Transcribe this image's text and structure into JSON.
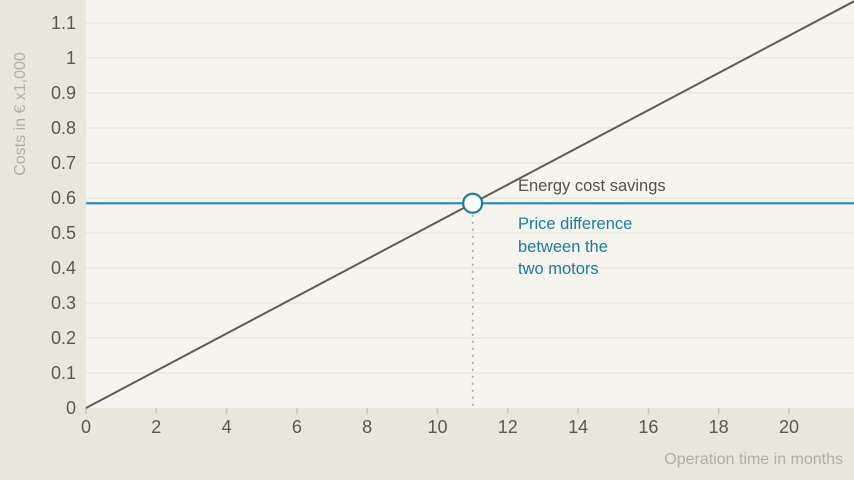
{
  "chart_data": {
    "type": "line",
    "title": "",
    "xlabel": "Operation time in months",
    "ylabel": "Costs in € x1,000",
    "xlim": [
      0,
      21.85
    ],
    "ylim": [
      0,
      1.17
    ],
    "grid": "horizontal",
    "legend_position": "inline-annotations",
    "x_ticks": [
      0,
      2,
      4,
      6,
      8,
      10,
      12,
      14,
      16,
      18,
      20
    ],
    "y_tick_step": 0.1,
    "y_tick_labels": [
      "0",
      "0.1",
      "0.2",
      "0.3",
      "0.4",
      "0.5",
      "0.6",
      "0.7",
      "0.8",
      "0.9",
      "1",
      "1.1"
    ],
    "series": [
      {
        "name": "Energy cost savings",
        "points": [
          [
            0,
            0
          ],
          [
            11,
            0.585
          ],
          [
            21.85,
            1.162
          ]
        ]
      },
      {
        "name": "Price difference between the two motors",
        "points": [
          [
            0,
            0.585
          ],
          [
            21.85,
            0.585
          ]
        ]
      }
    ],
    "intersection": {
      "x": 11,
      "y": 0.585,
      "marker": "open-circle"
    },
    "annotations": {
      "energy": {
        "text": "Energy cost savings"
      },
      "price": {
        "lines": [
          "Price difference",
          "between the",
          "two motors"
        ]
      }
    }
  },
  "colors": {
    "page_bg": "#e9e6dc",
    "plot_bg": "#f5f4ee",
    "grid": "#e7e4d9",
    "tick_mark": "#c9c6ba",
    "tick_text": "#5b5852",
    "muted_text": "#b2afa1",
    "energy_line": "#5d5b55",
    "energy_text": "#53514b",
    "price_line": "#3590b5",
    "price_text": "#1b7d9d",
    "marker_stroke": "#1f7d9c",
    "marker_fill": "#fcfbf7",
    "dotted_line": "#a8a59a"
  }
}
